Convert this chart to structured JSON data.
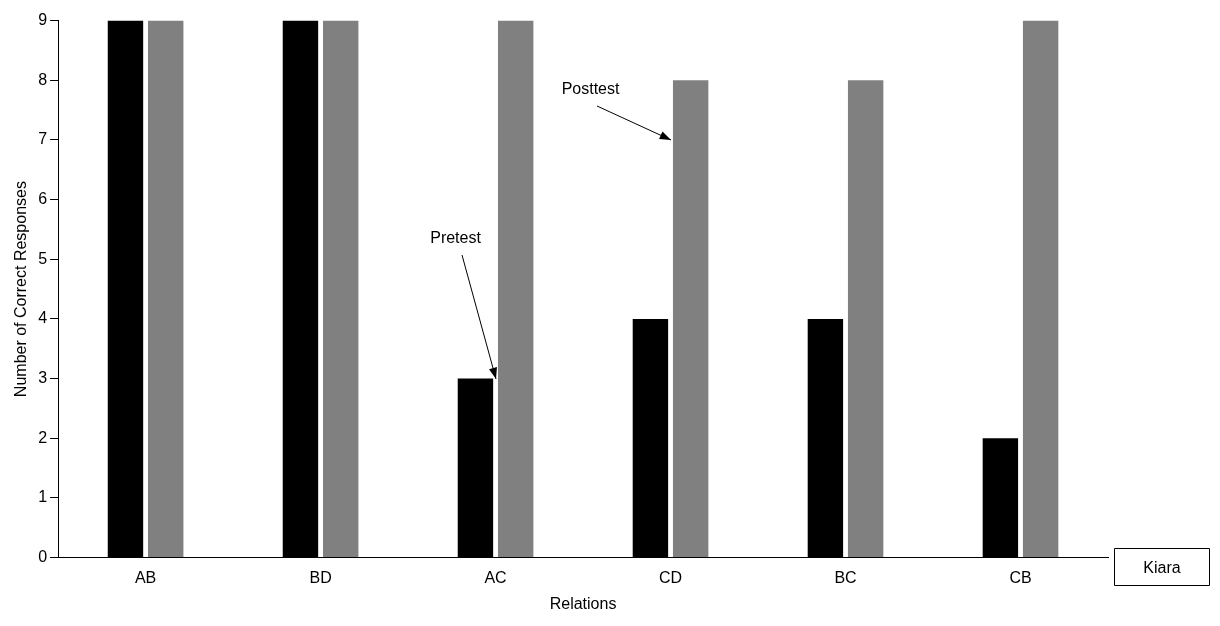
{
  "chart_data": {
    "type": "bar",
    "xlabel": "Relations",
    "ylabel": "Number of Correct Responses",
    "categories": [
      "AB",
      "BD",
      "AC",
      "CD",
      "BC",
      "CB"
    ],
    "series": [
      {
        "color": "#000000",
        "values": [
          9,
          9,
          3,
          4,
          4,
          2
        ]
      },
      {
        "color": "#808080",
        "values": [
          9,
          9,
          9,
          8,
          8,
          9
        ]
      }
    ],
    "ylim": [
      0,
      9
    ],
    "yticks": [
      0,
      1,
      2,
      3,
      4,
      5,
      6,
      7,
      8,
      9
    ],
    "grid": false,
    "legend": false,
    "annotations": [
      {
        "text": "Pretest",
        "x": "AC",
        "y": 3
      },
      {
        "text": "Posttest",
        "x": "CD",
        "y": 7
      },
      "Kiara"
    ]
  }
}
